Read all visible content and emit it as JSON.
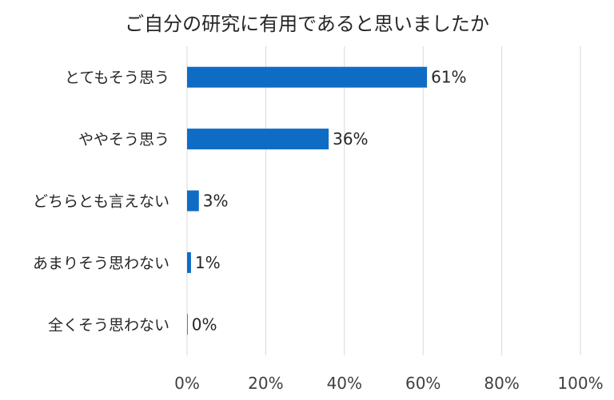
{
  "chart_data": {
    "type": "bar",
    "orientation": "horizontal",
    "title": "ご自分の研究に有用であると思いましたか",
    "categories": [
      "とてもそう思う",
      "ややそう思う",
      "どちらとも言えない",
      "あまりそう思わない",
      "全くそう思わない"
    ],
    "values": [
      61,
      36,
      3,
      1,
      0
    ],
    "data_labels": [
      "61%",
      "36%",
      "3%",
      "1%",
      "0%"
    ],
    "xlim": [
      0,
      100
    ],
    "x_ticks": [
      0,
      20,
      40,
      60,
      80,
      100
    ],
    "x_tick_labels": [
      "0%",
      "20%",
      "40%",
      "60%",
      "80%",
      "100%"
    ],
    "grid": true,
    "bar_color": "#0f6cc5",
    "grid_color": "#d9d9d9"
  }
}
